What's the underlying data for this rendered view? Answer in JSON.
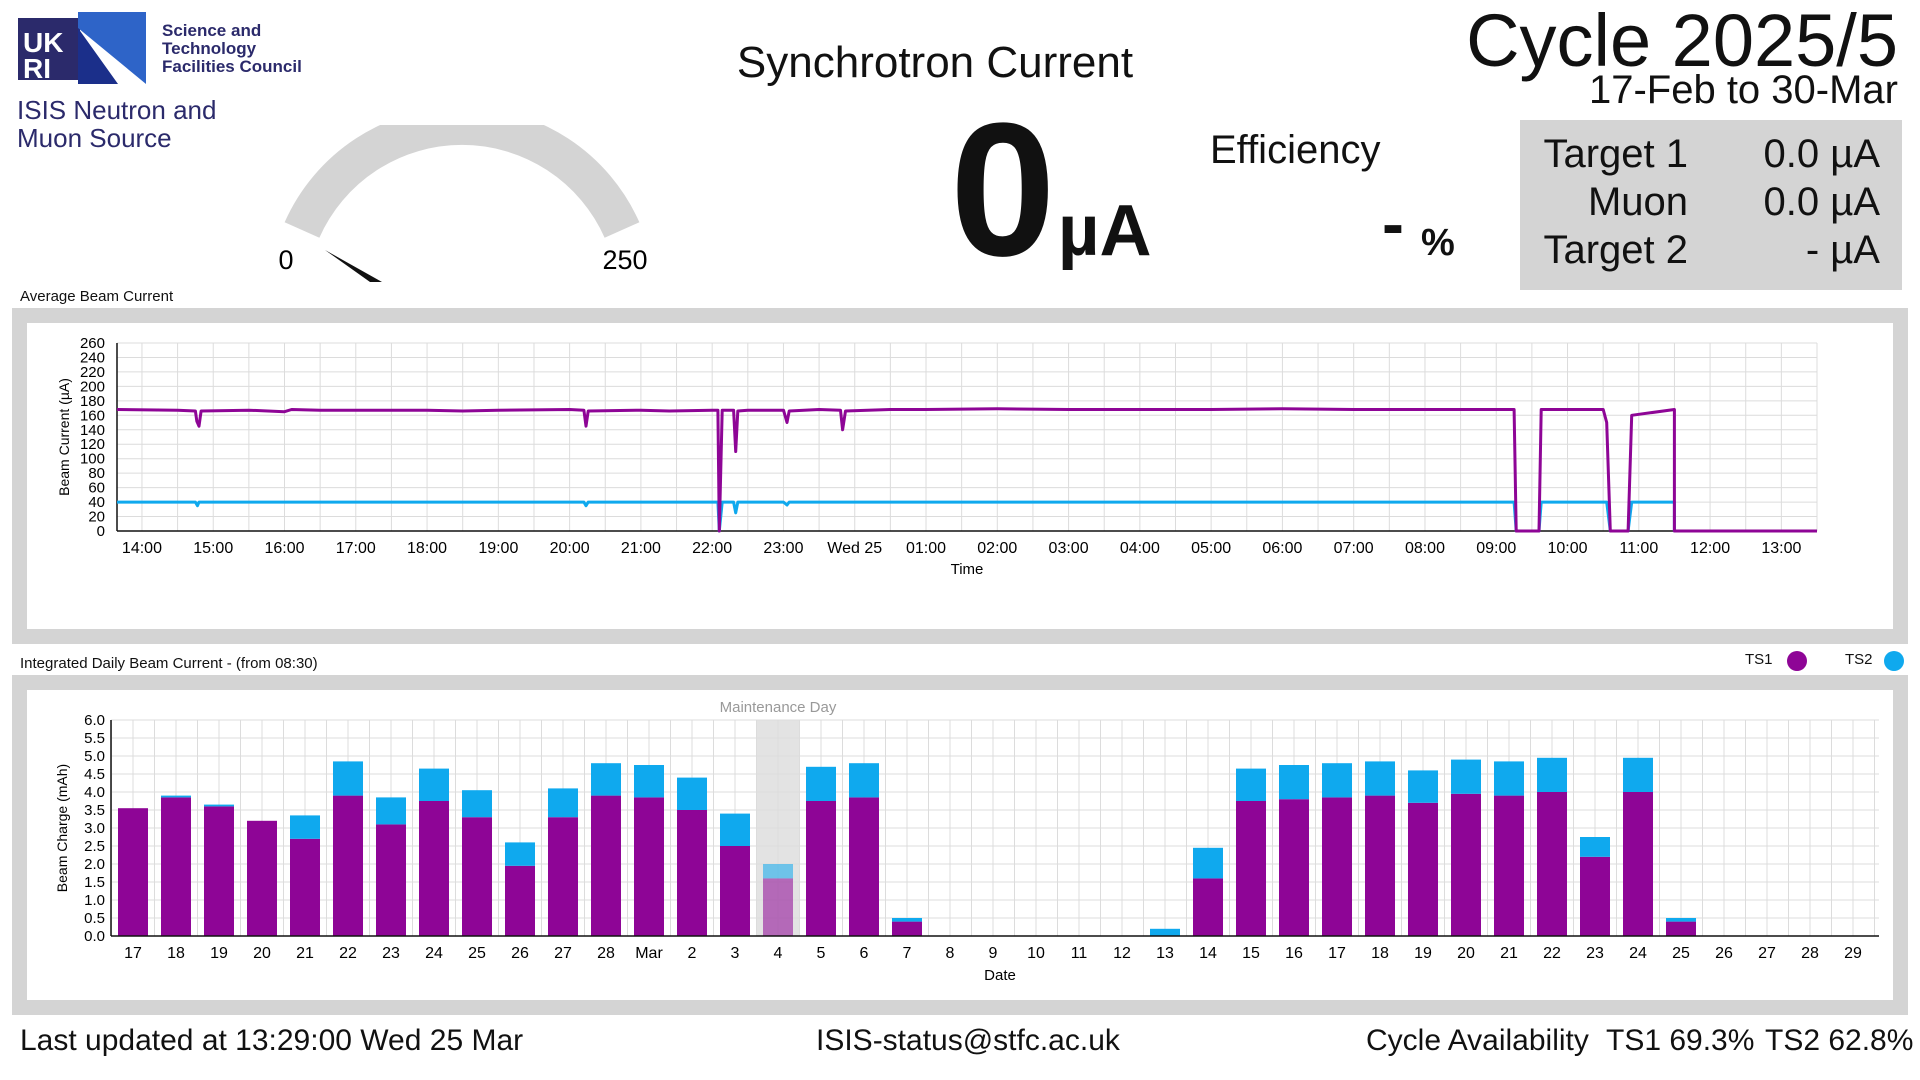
{
  "header": {
    "logo_text": "UKRI",
    "council_lines": [
      "Science and",
      "Technology",
      "Facilities Council"
    ],
    "isis_lines": [
      "ISIS Neutron and",
      "Muon Source"
    ],
    "page_title": "Synchrotron Current",
    "cycle_title": "Cycle 2025/5",
    "cycle_dates": "17-Feb to 30-Mar"
  },
  "gauge": {
    "min": "0",
    "max": "250",
    "value": 0,
    "min_value": 0,
    "max_value": 250
  },
  "current": {
    "value": "0",
    "unit": "µA"
  },
  "efficiency": {
    "label": "Efficiency",
    "value": "-",
    "unit": "%"
  },
  "targets": [
    {
      "name": "Target 1",
      "value": "0.0 µA"
    },
    {
      "name": "Muon",
      "value": "0.0 µA"
    },
    {
      "name": "Target 2",
      "value": "- µA"
    }
  ],
  "colors": {
    "ts1": "#8e0596",
    "ts2": "#0fa9ee",
    "panel": "#d4d4d4",
    "maintenance": "#e3e3e3"
  },
  "chart_data": [
    {
      "type": "line",
      "panel_label": "Average Beam Current",
      "xlabel": "Time",
      "ylabel": "Beam Current (µA)",
      "ylim": [
        0,
        260
      ],
      "yticks": [
        0,
        20,
        40,
        60,
        80,
        100,
        120,
        140,
        160,
        180,
        200,
        220,
        240,
        260
      ],
      "xlim": [
        13.65,
        37.5
      ],
      "xticks": [
        {
          "x": 14,
          "label": "14:00"
        },
        {
          "x": 15,
          "label": "15:00"
        },
        {
          "x": 16,
          "label": "16:00"
        },
        {
          "x": 17,
          "label": "17:00"
        },
        {
          "x": 18,
          "label": "18:00"
        },
        {
          "x": 19,
          "label": "19:00"
        },
        {
          "x": 20,
          "label": "20:00"
        },
        {
          "x": 21,
          "label": "21:00"
        },
        {
          "x": 22,
          "label": "22:00"
        },
        {
          "x": 23,
          "label": "23:00"
        },
        {
          "x": 24,
          "label": "Wed 25"
        },
        {
          "x": 25,
          "label": "01:00"
        },
        {
          "x": 26,
          "label": "02:00"
        },
        {
          "x": 27,
          "label": "03:00"
        },
        {
          "x": 28,
          "label": "04:00"
        },
        {
          "x": 29,
          "label": "05:00"
        },
        {
          "x": 30,
          "label": "06:00"
        },
        {
          "x": 31,
          "label": "07:00"
        },
        {
          "x": 32,
          "label": "08:00"
        },
        {
          "x": 33,
          "label": "09:00"
        },
        {
          "x": 34,
          "label": "10:00"
        },
        {
          "x": 35,
          "label": "11:00"
        },
        {
          "x": 36,
          "label": "12:00"
        },
        {
          "x": 37,
          "label": "13:00"
        }
      ],
      "grid": true,
      "series": [
        {
          "name": "TS1",
          "points": [
            [
              13.65,
              168
            ],
            [
              14.5,
              167
            ],
            [
              14.75,
              166
            ],
            [
              14.77,
              152
            ],
            [
              14.8,
              145
            ],
            [
              14.83,
              166
            ],
            [
              15.5,
              167
            ],
            [
              16.0,
              165
            ],
            [
              16.1,
              168
            ],
            [
              16.5,
              167
            ],
            [
              17.0,
              167
            ],
            [
              18.0,
              167
            ],
            [
              18.5,
              166
            ],
            [
              19.0,
              167
            ],
            [
              20.0,
              168
            ],
            [
              20.2,
              167
            ],
            [
              20.23,
              145
            ],
            [
              20.26,
              166
            ],
            [
              21.0,
              167
            ],
            [
              21.4,
              166
            ],
            [
              22.0,
              167
            ],
            [
              22.08,
              167
            ],
            [
              22.1,
              0
            ],
            [
              22.14,
              167
            ],
            [
              22.3,
              167
            ],
            [
              22.33,
              110
            ],
            [
              22.36,
              166
            ],
            [
              22.5,
              167
            ],
            [
              23.0,
              167
            ],
            [
              23.05,
              150
            ],
            [
              23.08,
              166
            ],
            [
              23.5,
              168
            ],
            [
              23.8,
              167
            ],
            [
              23.83,
              140
            ],
            [
              23.87,
              166
            ],
            [
              24.5,
              168
            ],
            [
              25.0,
              168
            ],
            [
              26.0,
              169
            ],
            [
              27.0,
              168
            ],
            [
              28.0,
              168
            ],
            [
              29.0,
              168
            ],
            [
              30.0,
              169
            ],
            [
              31.0,
              168
            ],
            [
              32.0,
              168
            ],
            [
              33.0,
              168
            ],
            [
              33.25,
              168
            ],
            [
              33.28,
              0
            ],
            [
              33.6,
              0
            ],
            [
              33.63,
              168
            ],
            [
              34.5,
              168
            ],
            [
              34.55,
              150
            ],
            [
              34.6,
              0
            ],
            [
              34.85,
              0
            ],
            [
              34.9,
              160
            ],
            [
              35.5,
              168
            ],
            [
              35.5,
              0
            ],
            [
              37.5,
              0
            ]
          ]
        },
        {
          "name": "TS2",
          "points": [
            [
              13.65,
              40
            ],
            [
              14.75,
              40
            ],
            [
              14.78,
              35
            ],
            [
              14.8,
              40
            ],
            [
              20.2,
              40
            ],
            [
              20.23,
              35
            ],
            [
              20.26,
              40
            ],
            [
              22.08,
              40
            ],
            [
              22.1,
              0
            ],
            [
              22.14,
              40
            ],
            [
              22.3,
              40
            ],
            [
              22.33,
              25
            ],
            [
              22.36,
              40
            ],
            [
              23.0,
              40
            ],
            [
              23.05,
              36
            ],
            [
              23.08,
              40
            ],
            [
              30.0,
              40
            ],
            [
              33.25,
              40
            ],
            [
              33.28,
              0
            ],
            [
              33.6,
              0
            ],
            [
              33.63,
              40
            ],
            [
              34.55,
              40
            ],
            [
              34.6,
              0
            ],
            [
              34.85,
              0
            ],
            [
              34.9,
              40
            ],
            [
              35.5,
              40
            ],
            [
              35.5,
              0
            ],
            [
              37.5,
              0
            ]
          ]
        }
      ]
    },
    {
      "type": "bar",
      "stacked": true,
      "panel_label": "Integrated Daily Beam Current - (from 08:30)",
      "xlabel": "Date",
      "ylabel": "Beam Charge (mAh)",
      "ylim": [
        0,
        6
      ],
      "yticks": [
        "0.0",
        "0.5",
        "1.0",
        "1.5",
        "2.0",
        "2.5",
        "3.0",
        "3.5",
        "4.0",
        "4.5",
        "5.0",
        "5.5",
        "6.0"
      ],
      "categories": [
        "17",
        "18",
        "19",
        "20",
        "21",
        "22",
        "23",
        "24",
        "25",
        "26",
        "27",
        "28",
        "Mar",
        "2",
        "3",
        "4",
        "5",
        "6",
        "7",
        "8",
        "9",
        "10",
        "11",
        "12",
        "13",
        "14",
        "15",
        "16",
        "17",
        "18",
        "19",
        "20",
        "21",
        "22",
        "23",
        "24",
        "25",
        "26",
        "27",
        "28",
        "29"
      ],
      "annotation": {
        "text": "Maintenance Day",
        "category_index": 15
      },
      "grid": true,
      "legend_position": "top-right",
      "series": [
        {
          "name": "TS1",
          "values": [
            3.55,
            3.85,
            3.6,
            3.2,
            2.7,
            3.9,
            3.1,
            3.75,
            3.3,
            1.95,
            3.3,
            3.9,
            3.85,
            3.5,
            2.5,
            1.6,
            3.75,
            3.85,
            0.4,
            0,
            0,
            0,
            0,
            0,
            0,
            1.6,
            3.75,
            3.8,
            3.85,
            3.9,
            3.7,
            3.95,
            3.9,
            4.0,
            2.2,
            4.0,
            0.4,
            0,
            0,
            0,
            0
          ]
        },
        {
          "name": "TS2",
          "values": [
            0,
            0.05,
            0.05,
            0,
            0.65,
            0.95,
            0.75,
            0.9,
            0.75,
            0.65,
            0.8,
            0.9,
            0.9,
            0.9,
            0.9,
            0.4,
            0.95,
            0.95,
            0.1,
            0,
            0,
            0,
            0,
            0,
            0.2,
            0.85,
            0.9,
            0.95,
            0.95,
            0.95,
            0.9,
            0.95,
            0.95,
            0.95,
            0.55,
            0.95,
            0.1,
            0,
            0,
            0,
            0
          ]
        }
      ]
    }
  ],
  "legend": {
    "ts1": "TS1",
    "ts2": "TS2"
  },
  "footer": {
    "last_updated": "Last updated at 13:29:00 Wed 25 Mar",
    "email": "ISIS-status@stfc.ac.uk",
    "availability_label": "Cycle Availability",
    "ts1": "TS1 69.3%",
    "ts2": "TS2 62.8%"
  }
}
